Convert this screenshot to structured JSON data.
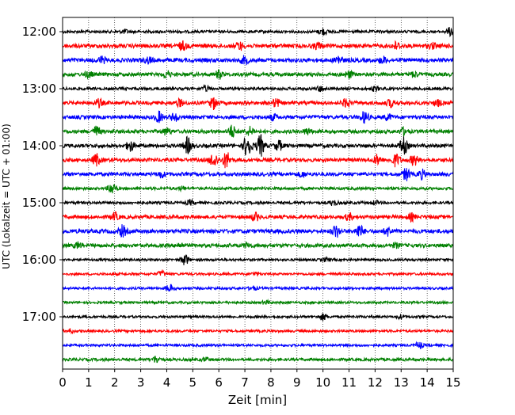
{
  "chart_data": {
    "type": "line",
    "title": "",
    "xlabel": "Zeit  [min]",
    "ylabel": "UTC (Lokalzeit = UTC + 01:00)",
    "xlim": [
      0,
      15
    ],
    "x_ticks": [
      0,
      1,
      2,
      3,
      4,
      5,
      6,
      7,
      8,
      9,
      10,
      11,
      12,
      13,
      14,
      15
    ],
    "x_tick_labels": [
      "0",
      "1",
      "2",
      "3",
      "4",
      "5",
      "6",
      "7",
      "8",
      "9",
      "10",
      "11",
      "12",
      "13",
      "14",
      "15"
    ],
    "y_tick_labels": [
      "12:00",
      "13:00",
      "14:00",
      "15:00",
      "16:00",
      "17:00"
    ],
    "grid": "vertical dotted at each minute",
    "trace_minutes": 15,
    "traces": [
      {
        "start": "12:00",
        "color": "#000000",
        "amp": 0.35,
        "events": [
          [
            10.0,
            0.8
          ],
          [
            14.9,
            1.0
          ],
          [
            2.4,
            0.4
          ]
        ]
      },
      {
        "start": "12:15",
        "color": "#ff0000",
        "amp": 0.5,
        "events": [
          [
            4.6,
            1.0
          ],
          [
            6.8,
            0.9
          ],
          [
            9.8,
            0.7
          ],
          [
            12.8,
            0.8
          ],
          [
            14.2,
            0.6
          ]
        ]
      },
      {
        "start": "12:30",
        "color": "#0000ff",
        "amp": 0.5,
        "events": [
          [
            1.5,
            0.8
          ],
          [
            3.3,
            0.7
          ],
          [
            7.0,
            0.9
          ],
          [
            10.6,
            1.1
          ],
          [
            12.3,
            0.8
          ]
        ]
      },
      {
        "start": "12:45",
        "color": "#008000",
        "amp": 0.45,
        "events": [
          [
            1.0,
            0.7
          ],
          [
            4.0,
            0.8
          ],
          [
            6.0,
            0.9
          ],
          [
            11.0,
            0.8
          ],
          [
            13.5,
            0.6
          ]
        ]
      },
      {
        "start": "13:00",
        "color": "#000000",
        "amp": 0.35,
        "events": [
          [
            5.5,
            0.6
          ],
          [
            9.9,
            0.6
          ],
          [
            12.0,
            0.5
          ]
        ]
      },
      {
        "start": "13:15",
        "color": "#ff0000",
        "amp": 0.45,
        "events": [
          [
            1.4,
            0.9
          ],
          [
            4.5,
            0.8
          ],
          [
            5.8,
            1.4
          ],
          [
            8.2,
            1.0
          ],
          [
            10.9,
            1.0
          ],
          [
            12.6,
            0.9
          ],
          [
            14.4,
            0.7
          ]
        ]
      },
      {
        "start": "13:30",
        "color": "#0000ff",
        "amp": 0.45,
        "events": [
          [
            3.7,
            1.3
          ],
          [
            4.3,
            1.0
          ],
          [
            8.1,
            0.7
          ],
          [
            11.6,
            1.4
          ],
          [
            12.5,
            0.7
          ]
        ]
      },
      {
        "start": "13:45",
        "color": "#008000",
        "amp": 0.45,
        "events": [
          [
            1.3,
            1.2
          ],
          [
            4.0,
            0.8
          ],
          [
            6.5,
            1.5
          ],
          [
            7.2,
            1.0
          ],
          [
            9.4,
            0.7
          ],
          [
            13.1,
            0.8
          ]
        ]
      },
      {
        "start": "14:00",
        "color": "#000000",
        "amp": 0.45,
        "events": [
          [
            2.6,
            1.3
          ],
          [
            4.8,
            2.0
          ],
          [
            7.1,
            3.0
          ],
          [
            7.6,
            2.6
          ],
          [
            8.3,
            1.2
          ],
          [
            13.1,
            2.0
          ]
        ]
      },
      {
        "start": "14:15",
        "color": "#ff0000",
        "amp": 0.45,
        "events": [
          [
            1.3,
            1.4
          ],
          [
            5.8,
            1.8
          ],
          [
            6.3,
            2.0
          ],
          [
            12.1,
            1.2
          ],
          [
            12.8,
            1.5
          ],
          [
            13.5,
            1.3
          ]
        ]
      },
      {
        "start": "14:30",
        "color": "#0000ff",
        "amp": 0.45,
        "events": [
          [
            3.8,
            0.7
          ],
          [
            9.2,
            0.6
          ],
          [
            13.2,
            1.5
          ],
          [
            13.8,
            1.0
          ]
        ]
      },
      {
        "start": "14:45",
        "color": "#008000",
        "amp": 0.35,
        "events": [
          [
            1.9,
            1.4
          ],
          [
            4.6,
            0.4
          ]
        ]
      },
      {
        "start": "15:00",
        "color": "#000000",
        "amp": 0.35,
        "events": [
          [
            4.9,
            0.5
          ],
          [
            10.4,
            0.6
          ],
          [
            12.0,
            0.4
          ]
        ]
      },
      {
        "start": "15:15",
        "color": "#ff0000",
        "amp": 0.45,
        "events": [
          [
            2.0,
            0.9
          ],
          [
            7.4,
            0.9
          ],
          [
            11.0,
            0.7
          ],
          [
            13.4,
            0.8
          ]
        ]
      },
      {
        "start": "15:30",
        "color": "#0000ff",
        "amp": 0.5,
        "events": [
          [
            2.3,
            1.3
          ],
          [
            10.5,
            1.4
          ],
          [
            11.4,
            1.5
          ],
          [
            12.5,
            1.0
          ]
        ]
      },
      {
        "start": "15:45",
        "color": "#008000",
        "amp": 0.45,
        "events": [
          [
            0.6,
            0.7
          ],
          [
            4.5,
            0.5
          ],
          [
            7.1,
            0.6
          ],
          [
            12.8,
            0.5
          ]
        ]
      },
      {
        "start": "16:00",
        "color": "#000000",
        "amp": 0.3,
        "events": [
          [
            4.7,
            1.3
          ],
          [
            10.1,
            0.4
          ]
        ]
      },
      {
        "start": "16:15",
        "color": "#ff0000",
        "amp": 0.3,
        "events": [
          [
            3.8,
            0.7
          ],
          [
            7.4,
            0.4
          ]
        ]
      },
      {
        "start": "16:30",
        "color": "#0000ff",
        "amp": 0.3,
        "events": [
          [
            4.1,
            0.9
          ],
          [
            7.3,
            0.5
          ]
        ]
      },
      {
        "start": "16:45",
        "color": "#008000",
        "amp": 0.3,
        "events": [
          [
            7.8,
            0.4
          ]
        ]
      },
      {
        "start": "17:00",
        "color": "#000000",
        "amp": 0.3,
        "events": [
          [
            10.0,
            0.8
          ],
          [
            13.0,
            0.4
          ]
        ]
      },
      {
        "start": "17:15",
        "color": "#ff0000",
        "amp": 0.3,
        "events": [
          [
            0.3,
            0.4
          ]
        ]
      },
      {
        "start": "17:30",
        "color": "#0000ff",
        "amp": 0.3,
        "events": [
          [
            13.7,
            0.8
          ]
        ]
      },
      {
        "start": "17:45",
        "color": "#008000",
        "amp": 0.35,
        "events": [
          [
            3.6,
            0.8
          ],
          [
            5.5,
            0.4
          ]
        ]
      }
    ]
  }
}
